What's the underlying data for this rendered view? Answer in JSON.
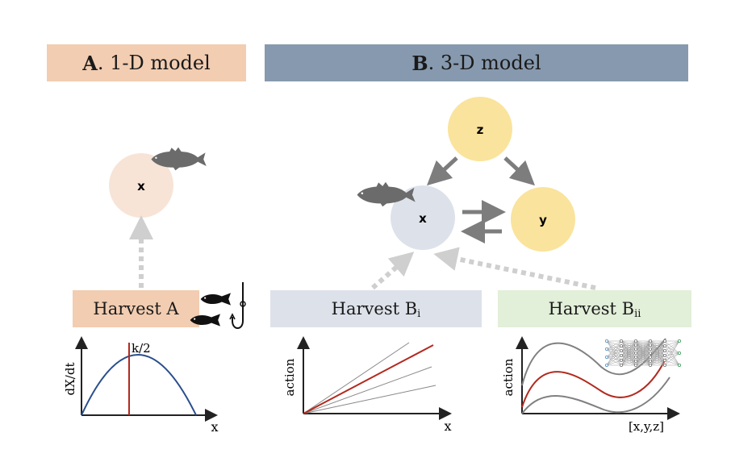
{
  "panel_a": {
    "letter": "A",
    "title_rest": ". 1-D model",
    "node_label": "x",
    "harvest_label": "Harvest A",
    "plot": {
      "ylabel": "dX/dt",
      "xlabel": "x",
      "marker_label": "k/2"
    }
  },
  "panel_b": {
    "letter": "B",
    "title_rest": ". 3-D model",
    "nodes": {
      "z": "z",
      "x": "x",
      "y": "y"
    },
    "harvest_bi": {
      "label": "Harvest B",
      "sub": "i"
    },
    "harvest_bii": {
      "label": "Harvest B",
      "sub": "ii"
    },
    "plot_bi": {
      "ylabel": "action",
      "xlabel": "x"
    },
    "plot_bii": {
      "ylabel": "action",
      "xlabel": "[x,y,z]"
    }
  },
  "colors": {
    "peach": "#f2cdb1",
    "slate": "#8799ae",
    "light_slate": "#dde2ea",
    "light_green": "#e2efd9",
    "yellow": "#fae39c",
    "red": "#c0231e",
    "blue": "#2c4f8c"
  },
  "icons": [
    "fish-icon",
    "fishing-hook-icon",
    "neural-network-icon"
  ]
}
